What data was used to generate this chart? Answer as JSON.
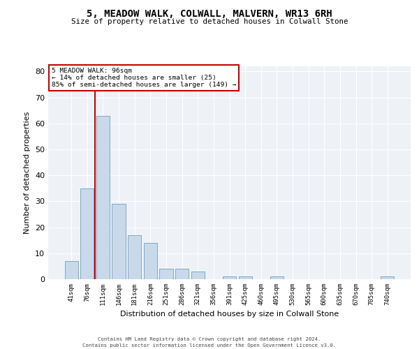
{
  "title": "5, MEADOW WALK, COLWALL, MALVERN, WR13 6RH",
  "subtitle": "Size of property relative to detached houses in Colwall Stone",
  "xlabel": "Distribution of detached houses by size in Colwall Stone",
  "ylabel": "Number of detached properties",
  "bar_labels": [
    "41sqm",
    "76sqm",
    "111sqm",
    "146sqm",
    "181sqm",
    "216sqm",
    "251sqm",
    "286sqm",
    "321sqm",
    "356sqm",
    "391sqm",
    "425sqm",
    "460sqm",
    "495sqm",
    "530sqm",
    "565sqm",
    "600sqm",
    "635sqm",
    "670sqm",
    "705sqm",
    "740sqm"
  ],
  "bar_values": [
    7,
    35,
    63,
    29,
    17,
    14,
    4,
    4,
    3,
    0,
    1,
    1,
    0,
    1,
    0,
    0,
    0,
    0,
    0,
    0,
    1
  ],
  "bar_color": "#c9d9ea",
  "bar_edge_color": "#7aa8cc",
  "ylim": [
    0,
    82
  ],
  "yticks": [
    0,
    10,
    20,
    30,
    40,
    50,
    60,
    70,
    80
  ],
  "red_line_x": 1.5,
  "annotation_text_line1": "5 MEADOW WALK: 96sqm",
  "annotation_text_line2": "← 14% of detached houses are smaller (25)",
  "annotation_text_line3": "85% of semi-detached houses are larger (149) →",
  "annotation_box_color": "#ffffff",
  "annotation_border_color": "#cc0000",
  "bg_color": "#eef2f7",
  "footer_line1": "Contains HM Land Registry data © Crown copyright and database right 2024.",
  "footer_line2": "Contains public sector information licensed under the Open Government Licence v3.0."
}
